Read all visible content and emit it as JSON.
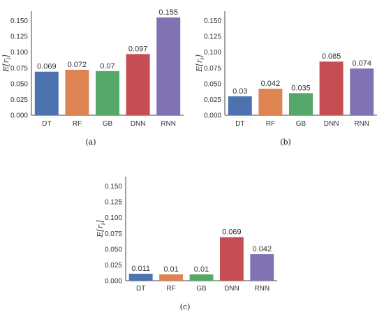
{
  "chart_data": [
    {
      "type": "bar",
      "caption": "(a)",
      "ylabel": "E[r_i]",
      "ylim": [
        0,
        0.165
      ],
      "yticks": [
        "0.000",
        "0.025",
        "0.050",
        "0.075",
        "0.100",
        "0.125",
        "0.150"
      ],
      "categories": [
        "DT",
        "RF",
        "GB",
        "DNN",
        "RNN"
      ],
      "values": [
        0.069,
        0.072,
        0.07,
        0.097,
        0.155
      ],
      "value_labels": [
        "0.069",
        "0.072",
        "0.07",
        "0.097",
        "0.155"
      ]
    },
    {
      "type": "bar",
      "caption": "(b)",
      "ylabel": "E[r_i]",
      "ylim": [
        0,
        0.165
      ],
      "yticks": [
        "0.000",
        "0.025",
        "0.050",
        "0.075",
        "0.100",
        "0.125",
        "0.150"
      ],
      "categories": [
        "DT",
        "RF",
        "GB",
        "DNN",
        "RNN"
      ],
      "values": [
        0.03,
        0.042,
        0.035,
        0.085,
        0.074
      ],
      "value_labels": [
        "0.03",
        "0.042",
        "0.035",
        "0.085",
        "0.074"
      ]
    },
    {
      "type": "bar",
      "caption": "(c)",
      "ylabel": "E[r_i]",
      "ylim": [
        0,
        0.165
      ],
      "yticks": [
        "0.000",
        "0.025",
        "0.050",
        "0.075",
        "0.100",
        "0.125",
        "0.150"
      ],
      "categories": [
        "DT",
        "RF",
        "GB",
        "DNN",
        "RNN"
      ],
      "values": [
        0.011,
        0.01,
        0.01,
        0.069,
        0.042
      ],
      "value_labels": [
        "0.011",
        "0.01",
        "0.01",
        "0.069",
        "0.042"
      ]
    }
  ],
  "colors": [
    "#4c72b0",
    "#dd8452",
    "#55a868",
    "#c44e52",
    "#8172b3"
  ],
  "grid": false,
  "legend": "none"
}
